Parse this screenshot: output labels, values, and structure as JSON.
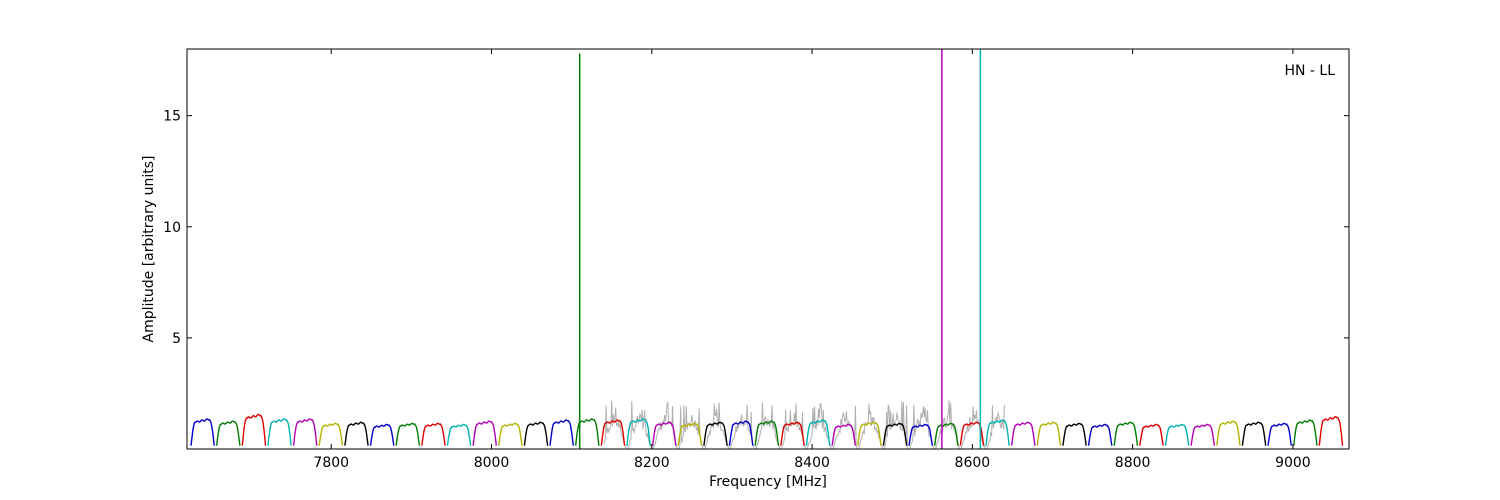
{
  "chart_data": {
    "type": "line",
    "title": "",
    "annotation": "HN - LL",
    "xlabel": "Frequency [MHz]",
    "ylabel": "Amplitude [arbitrary units]",
    "xlim": [
      7620,
      9070
    ],
    "ylim": [
      0,
      18
    ],
    "xticks": [
      7800,
      8000,
      8200,
      8400,
      8600,
      8800,
      9000
    ],
    "yticks": [
      5,
      10,
      15
    ],
    "grid": false,
    "legend": "none",
    "channel_colors": [
      "#0000cc",
      "#007a00",
      "#e00000",
      "#00b3b3",
      "#b300b3",
      "#b3b300",
      "#000000"
    ],
    "channels": {
      "start_mhz": 7625,
      "width_mhz": 32,
      "count": 45,
      "peak_levels": [
        1.35,
        1.25,
        1.55,
        1.35,
        1.35,
        1.15,
        1.2,
        1.1,
        1.15,
        1.15,
        1.1,
        1.25,
        1.15,
        1.2,
        1.3,
        1.35,
        1.3,
        1.35,
        1.2,
        1.15,
        1.2,
        1.25,
        1.25,
        1.2,
        1.3,
        1.1,
        1.2,
        1.15,
        1.1,
        1.15,
        1.2,
        1.3,
        1.2,
        1.2,
        1.15,
        1.1,
        1.2,
        1.1,
        1.1,
        1.1,
        1.25,
        1.2,
        1.15,
        1.3,
        1.45
      ]
    },
    "noise_band": {
      "color": "#b0b0b0",
      "range_mhz": [
        8140,
        8640
      ],
      "level": 1.6,
      "spike_max": 2.2
    },
    "spikes": [
      {
        "x": 8110,
        "y": 17.8,
        "color": "#007a00"
      },
      {
        "x": 8562,
        "y": 18.0,
        "color": "#b300b3"
      },
      {
        "x": 8610,
        "y": 18.0,
        "color": "#00b3b3"
      }
    ]
  }
}
